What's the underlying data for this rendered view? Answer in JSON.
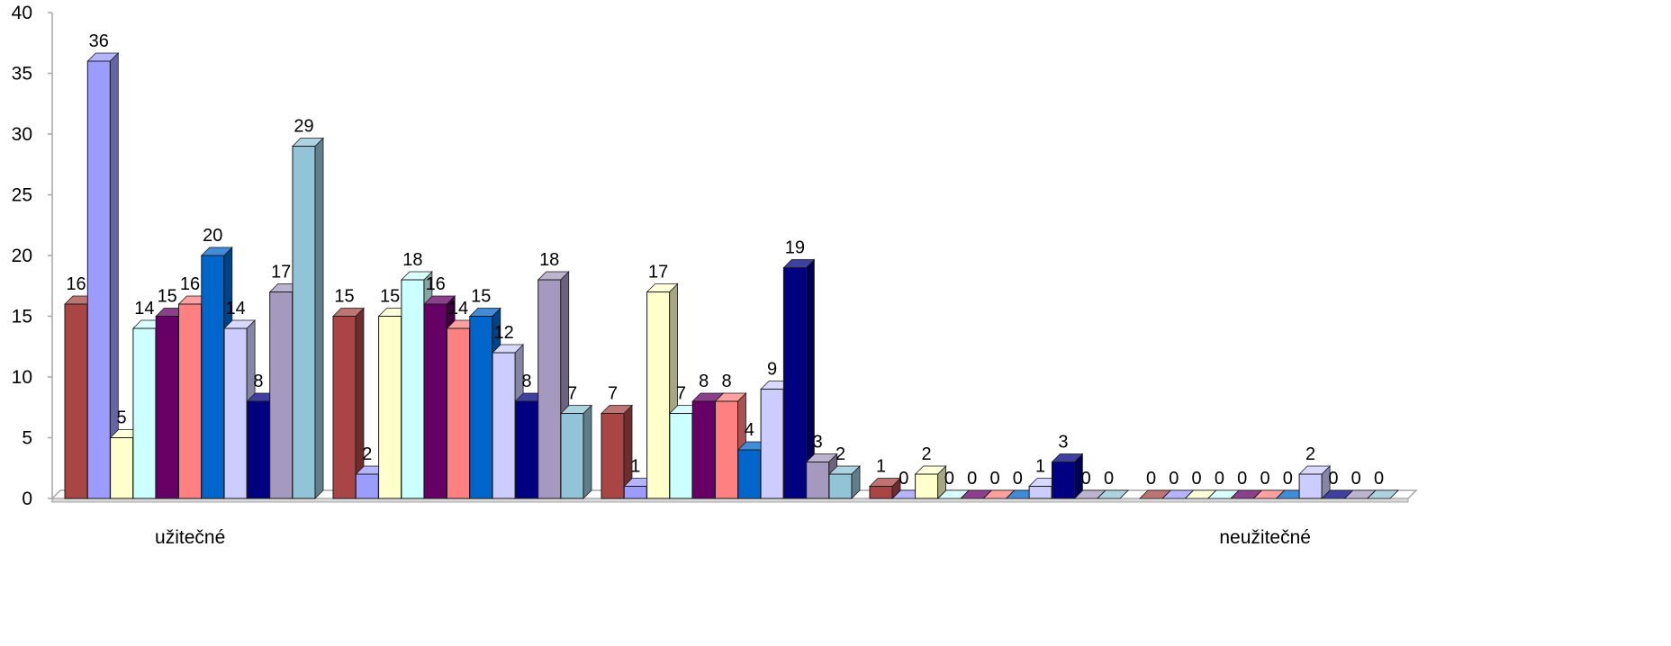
{
  "chart_data": {
    "type": "bar",
    "title": "",
    "xlabel": "",
    "ylabel": "",
    "ylim": [
      0,
      40
    ],
    "yticks": [
      0,
      5,
      10,
      15,
      20,
      25,
      30,
      35,
      40
    ],
    "grid": false,
    "legend": "none",
    "three_d": true,
    "groups": 5,
    "category_labels": [
      {
        "group_index": 0,
        "text": "užitečné"
      },
      {
        "group_index": 4,
        "text": "neužitečné"
      }
    ],
    "series": [
      {
        "color": "#A94545",
        "values": [
          16,
          15,
          7,
          1,
          0
        ]
      },
      {
        "color": "#9C9CFF",
        "values": [
          36,
          2,
          1,
          0,
          0
        ]
      },
      {
        "color": "#FFFFCC",
        "values": [
          5,
          15,
          17,
          2,
          0
        ]
      },
      {
        "color": "#CCFFFF",
        "values": [
          14,
          18,
          7,
          0,
          0
        ]
      },
      {
        "color": "#660066",
        "values": [
          15,
          16,
          8,
          0,
          0
        ]
      },
      {
        "color": "#FF8080",
        "values": [
          16,
          14,
          8,
          0,
          0
        ]
      },
      {
        "color": "#0066CC",
        "values": [
          20,
          15,
          4,
          0,
          0
        ]
      },
      {
        "color": "#CCCCFF",
        "values": [
          14,
          12,
          9,
          1,
          2
        ]
      },
      {
        "color": "#000080",
        "values": [
          8,
          8,
          19,
          3,
          0
        ]
      },
      {
        "color": "#A699BF",
        "values": [
          17,
          18,
          3,
          0,
          0
        ]
      },
      {
        "color": "#92C3D6",
        "values": [
          29,
          7,
          2,
          0,
          0
        ]
      }
    ]
  }
}
